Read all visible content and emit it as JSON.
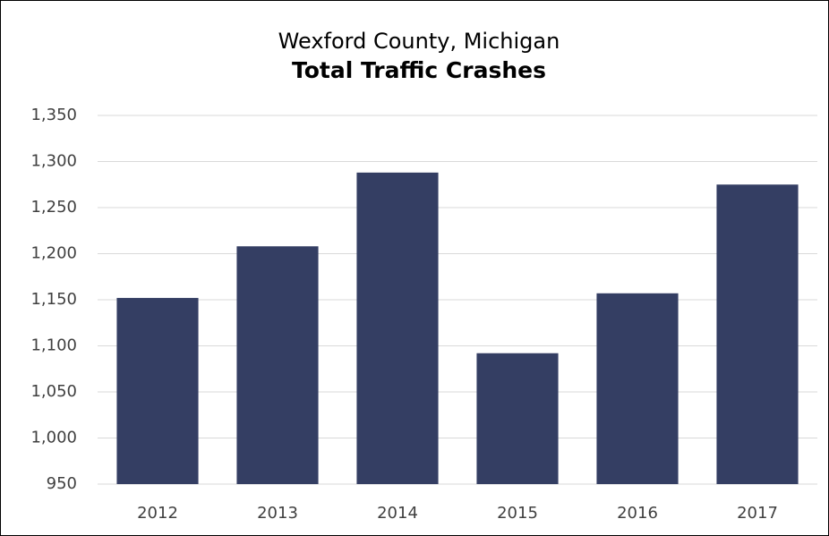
{
  "chart_data": {
    "type": "bar",
    "subtitle": "Wexford County, Michigan",
    "title": "Total Traffic Crashes",
    "categories": [
      "2012",
      "2013",
      "2014",
      "2015",
      "2016",
      "2017"
    ],
    "values": [
      1152,
      1208,
      1288,
      1092,
      1157,
      1275
    ],
    "color": "#343e63",
    "ylim": [
      950,
      1350
    ],
    "yticks": [
      950,
      {
        "value": 1000,
        "label": "1,000"
      },
      {
        "value": 1050,
        "label": "1,050"
      },
      {
        "value": 1100,
        "label": "1,100"
      },
      {
        "value": 1150,
        "label": "1,150"
      },
      {
        "value": 1200,
        "label": "1,200"
      },
      {
        "value": 1250,
        "label": "1,250"
      },
      {
        "value": 1300,
        "label": "1,300"
      },
      {
        "value": 1350,
        "label": "1,350"
      }
    ],
    "grid": true
  }
}
